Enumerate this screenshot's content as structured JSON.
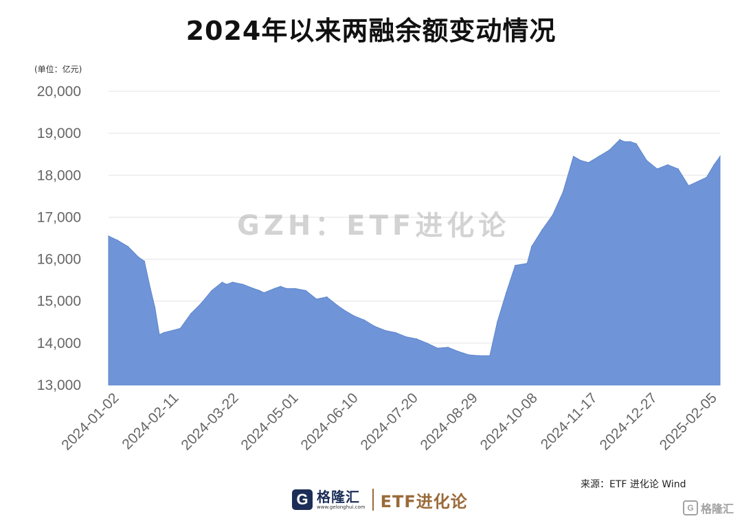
{
  "chart_data": {
    "type": "area",
    "title": "2024年以来两融余额变动情况",
    "unit_label": "(单位：亿元)",
    "ylim": [
      13000,
      20000
    ],
    "y_ticks": [
      "13,000",
      "14,000",
      "15,000",
      "16,000",
      "17,000",
      "18,000",
      "19,000",
      "20,000"
    ],
    "y_tick_values": [
      13000,
      14000,
      15000,
      16000,
      17000,
      18000,
      19000,
      20000
    ],
    "x_tick_labels": [
      "2024-01-02",
      "2024-02-11",
      "2024-03-22",
      "2024-05-01",
      "2024-06-10",
      "2024-07-20",
      "2024-08-29",
      "2024-10-08",
      "2024-11-17",
      "2024-12-27",
      "2025-02-05"
    ],
    "grid": true,
    "color": "#6f95d8",
    "series": [
      {
        "x": [
          "2024-01-02",
          "2024-01-08",
          "2024-01-15",
          "2024-01-22",
          "2024-01-26",
          "2024-01-30",
          "2024-02-02",
          "2024-02-05",
          "2024-02-08",
          "2024-02-19",
          "2024-02-26",
          "2024-03-04",
          "2024-03-11",
          "2024-03-18",
          "2024-03-21",
          "2024-03-25",
          "2024-04-01",
          "2024-04-08",
          "2024-04-12",
          "2024-04-15",
          "2024-04-22",
          "2024-04-26",
          "2024-04-30",
          "2024-05-06",
          "2024-05-13",
          "2024-05-20",
          "2024-05-27",
          "2024-06-03",
          "2024-06-07",
          "2024-06-14",
          "2024-06-21",
          "2024-06-28",
          "2024-07-05",
          "2024-07-12",
          "2024-07-19",
          "2024-07-26",
          "2024-08-02",
          "2024-08-09",
          "2024-08-16",
          "2024-08-23",
          "2024-08-30",
          "2024-09-06",
          "2024-09-13",
          "2024-09-18",
          "2024-09-24",
          "2024-09-30",
          "2024-10-08",
          "2024-10-11",
          "2024-10-18",
          "2024-10-25",
          "2024-11-01",
          "2024-11-08",
          "2024-11-13",
          "2024-11-18",
          "2024-11-25",
          "2024-12-02",
          "2024-12-09",
          "2024-12-12",
          "2024-12-16",
          "2024-12-20",
          "2024-12-27",
          "2025-01-03",
          "2025-01-10",
          "2025-01-17",
          "2025-01-24",
          "2025-02-05",
          "2025-02-10",
          "2025-02-14"
        ],
        "values": [
          16550,
          16450,
          16300,
          16050,
          15950,
          15300,
          14850,
          14200,
          14250,
          14350,
          14700,
          14950,
          15250,
          15450,
          15400,
          15450,
          15400,
          15300,
          15250,
          15200,
          15300,
          15350,
          15300,
          15300,
          15250,
          15050,
          15100,
          14900,
          14800,
          14650,
          14550,
          14400,
          14300,
          14250,
          14150,
          14100,
          14000,
          13880,
          13900,
          13800,
          13720,
          13700,
          13700,
          14500,
          15200,
          15850,
          15900,
          16300,
          16700,
          17050,
          17600,
          18450,
          18350,
          18300,
          18450,
          18600,
          18850,
          18800,
          18800,
          18750,
          18350,
          18150,
          18250,
          18150,
          17750,
          17950,
          18250,
          18450
        ]
      }
    ]
  },
  "watermark": "GZH：ETF进化论",
  "source": "来源：ETF 进化论    Wind",
  "footer": {
    "brand_name": "格隆汇",
    "brand_url": "www.gelonghui.com",
    "etf_brand": "ETF进化论",
    "logo_letter": "G"
  },
  "corner_watermark": "格隆汇"
}
